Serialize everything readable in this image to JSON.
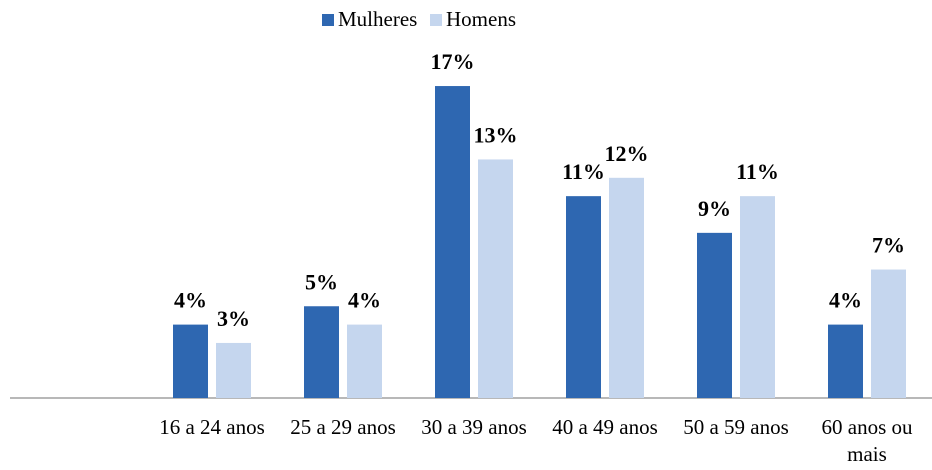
{
  "chart_data": {
    "type": "bar",
    "categories": [
      null,
      "16 a 24 anos",
      "25 a 29 anos",
      "30 a 39 anos",
      "40 a 49 anos",
      "50 a 59 anos",
      "60 anos ou mais"
    ],
    "series": [
      {
        "name": "Mulheres",
        "color": "#2e67b1",
        "values": [
          null,
          4,
          5,
          17,
          11,
          9,
          4
        ],
        "value_labels": [
          null,
          "4%",
          "5%",
          "17%",
          "11%",
          "9%",
          "4%"
        ]
      },
      {
        "name": "Homens",
        "color": "#c5d6ee",
        "values": [
          null,
          3,
          4,
          13,
          12,
          11,
          7
        ],
        "value_labels": [
          null,
          "3%",
          "4%",
          "13%",
          "12%",
          "11%",
          "7%"
        ]
      }
    ],
    "legend": "top"
  }
}
